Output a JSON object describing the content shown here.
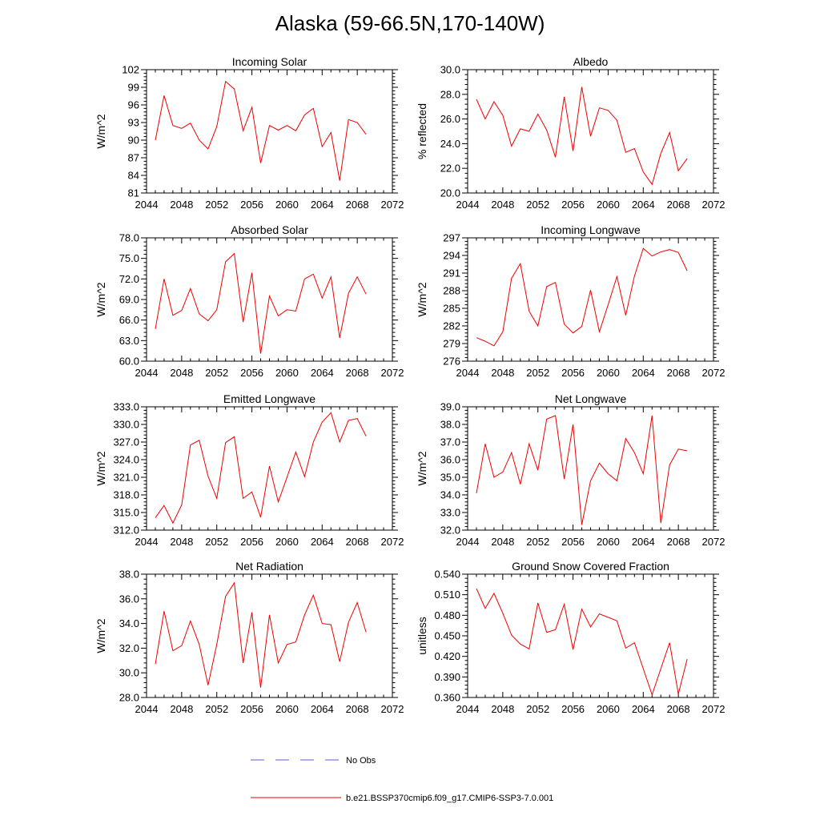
{
  "title": "Alaska (59-66.5N,170-140W)",
  "legend": [
    {
      "label": "No Obs",
      "color": "#5b5bd6",
      "style": "dashed"
    },
    {
      "label": "b.e21.BSSP370cmip6.f09_g17.CMIP6-SSP3-7.0.001",
      "color": "#ee0000",
      "style": "solid"
    }
  ],
  "chart_data": [
    {
      "type": "line",
      "title": "Incoming Solar",
      "ylabel": "W/m^2",
      "xlim": [
        2044,
        2072
      ],
      "ylim": [
        81,
        102
      ],
      "xticks": [
        2044,
        2048,
        2052,
        2056,
        2060,
        2064,
        2068,
        2072
      ],
      "yticks": [
        "81",
        "84",
        "87",
        "90",
        "93",
        "96",
        "99",
        "102"
      ],
      "color": "#ee0000",
      "x": [
        2045,
        2046,
        2047,
        2048,
        2049,
        2050,
        2051,
        2052,
        2053,
        2054,
        2055,
        2056,
        2057,
        2058,
        2059,
        2060,
        2061,
        2062,
        2063,
        2064,
        2065,
        2066,
        2067,
        2068,
        2069
      ],
      "values": [
        90.0,
        97.6,
        92.5,
        92.0,
        92.9,
        90.0,
        88.5,
        92.3,
        100.0,
        98.7,
        91.6,
        95.6,
        86.1,
        92.5,
        91.7,
        92.5,
        91.6,
        94.3,
        95.4,
        88.9,
        91.3,
        83.1,
        93.5,
        93.0,
        91.0
      ]
    },
    {
      "type": "line",
      "title": "Albedo",
      "ylabel": "% reflected",
      "xlim": [
        2044,
        2072
      ],
      "ylim": [
        20.0,
        30.0
      ],
      "xticks": [
        2044,
        2048,
        2052,
        2056,
        2060,
        2064,
        2068,
        2072
      ],
      "yticks": [
        "20.0",
        "22.0",
        "24.0",
        "26.0",
        "28.0",
        "30.0"
      ],
      "color": "#ee0000",
      "x": [
        2045,
        2046,
        2047,
        2048,
        2049,
        2050,
        2051,
        2052,
        2053,
        2054,
        2055,
        2056,
        2057,
        2058,
        2059,
        2060,
        2061,
        2062,
        2063,
        2064,
        2065,
        2066,
        2067,
        2068,
        2069
      ],
      "values": [
        27.6,
        26.0,
        27.4,
        26.3,
        23.8,
        25.2,
        25.0,
        26.4,
        25.1,
        22.9,
        27.8,
        23.4,
        28.6,
        24.6,
        26.9,
        26.7,
        25.9,
        23.3,
        23.6,
        21.7,
        20.7,
        23.2,
        24.9,
        21.8,
        22.8
      ]
    },
    {
      "type": "line",
      "title": "Absorbed Solar",
      "ylabel": "W/m^2",
      "xlim": [
        2044,
        2072
      ],
      "ylim": [
        60.0,
        78.0
      ],
      "xticks": [
        2044,
        2048,
        2052,
        2056,
        2060,
        2064,
        2068,
        2072
      ],
      "yticks": [
        "60.0",
        "63.0",
        "66.0",
        "69.0",
        "72.0",
        "75.0",
        "78.0"
      ],
      "color": "#ee0000",
      "x": [
        2045,
        2046,
        2047,
        2048,
        2049,
        2050,
        2051,
        2052,
        2053,
        2054,
        2055,
        2056,
        2057,
        2058,
        2059,
        2060,
        2061,
        2062,
        2063,
        2064,
        2065,
        2066,
        2067,
        2068,
        2069
      ],
      "values": [
        64.7,
        72.0,
        66.7,
        67.4,
        70.6,
        66.9,
        65.9,
        67.5,
        74.5,
        75.7,
        65.7,
        72.9,
        61.1,
        69.5,
        66.6,
        67.5,
        67.3,
        72.0,
        72.7,
        69.2,
        72.3,
        63.4,
        69.9,
        72.3,
        69.8
      ]
    },
    {
      "type": "line",
      "title": "Incoming Longwave",
      "ylabel": "W/m^2",
      "xlim": [
        2044,
        2072
      ],
      "ylim": [
        276,
        297
      ],
      "xticks": [
        2044,
        2048,
        2052,
        2056,
        2060,
        2064,
        2068,
        2072
      ],
      "yticks": [
        "276",
        "279",
        "282",
        "285",
        "288",
        "291",
        "294",
        "297"
      ],
      "color": "#ee0000",
      "x": [
        2045,
        2046,
        2047,
        2048,
        2049,
        2050,
        2051,
        2052,
        2053,
        2054,
        2055,
        2056,
        2057,
        2058,
        2059,
        2060,
        2061,
        2062,
        2063,
        2064,
        2065,
        2066,
        2067,
        2068,
        2069
      ],
      "values": [
        280.0,
        279.4,
        278.6,
        281.0,
        290.1,
        292.6,
        284.5,
        282.0,
        288.7,
        289.4,
        282.3,
        280.8,
        281.9,
        288.1,
        281.0,
        285.6,
        290.4,
        283.8,
        290.5,
        295.2,
        293.9,
        294.6,
        295.0,
        294.5,
        291.4
      ]
    },
    {
      "type": "line",
      "title": "Emitted Longwave",
      "ylabel": "W/m^2",
      "xlim": [
        2044,
        2072
      ],
      "ylim": [
        312.0,
        333.0
      ],
      "xticks": [
        2044,
        2048,
        2052,
        2056,
        2060,
        2064,
        2068,
        2072
      ],
      "yticks": [
        "312.0",
        "315.0",
        "318.0",
        "321.0",
        "324.0",
        "327.0",
        "330.0",
        "333.0"
      ],
      "color": "#ee0000",
      "x": [
        2045,
        2046,
        2047,
        2048,
        2049,
        2050,
        2051,
        2052,
        2053,
        2054,
        2055,
        2056,
        2057,
        2058,
        2059,
        2060,
        2061,
        2062,
        2063,
        2064,
        2065,
        2066,
        2067,
        2068,
        2069
      ],
      "values": [
        314.1,
        316.2,
        313.2,
        316.3,
        326.5,
        327.3,
        321.2,
        317.4,
        326.9,
        327.9,
        317.4,
        318.5,
        314.2,
        322.9,
        316.8,
        321.0,
        325.3,
        321.1,
        327.0,
        330.4,
        332.0,
        327.0,
        330.7,
        331.0,
        328.0
      ]
    },
    {
      "type": "line",
      "title": "Net Longwave",
      "ylabel": "W/m^2",
      "xlim": [
        2044,
        2072
      ],
      "ylim": [
        32.0,
        39.0
      ],
      "xticks": [
        2044,
        2048,
        2052,
        2056,
        2060,
        2064,
        2068,
        2072
      ],
      "yticks": [
        "32.0",
        "33.0",
        "34.0",
        "35.0",
        "36.0",
        "37.0",
        "38.0",
        "39.0"
      ],
      "color": "#ee0000",
      "x": [
        2045,
        2046,
        2047,
        2048,
        2049,
        2050,
        2051,
        2052,
        2053,
        2054,
        2055,
        2056,
        2057,
        2058,
        2059,
        2060,
        2061,
        2062,
        2063,
        2064,
        2065,
        2066,
        2067,
        2068,
        2069
      ],
      "values": [
        34.1,
        36.9,
        35.0,
        35.3,
        36.4,
        34.6,
        36.9,
        35.4,
        38.3,
        38.5,
        34.9,
        38.0,
        32.3,
        34.8,
        35.8,
        35.2,
        34.8,
        37.2,
        36.4,
        35.2,
        38.5,
        32.4,
        35.7,
        36.6,
        36.5
      ]
    },
    {
      "type": "line",
      "title": "Net Radiation",
      "ylabel": "W/m^2",
      "xlim": [
        2044,
        2072
      ],
      "ylim": [
        28.0,
        38.0
      ],
      "xticks": [
        2044,
        2048,
        2052,
        2056,
        2060,
        2064,
        2068,
        2072
      ],
      "yticks": [
        "28.0",
        "30.0",
        "32.0",
        "34.0",
        "36.0",
        "38.0"
      ],
      "color": "#ee0000",
      "x": [
        2045,
        2046,
        2047,
        2048,
        2049,
        2050,
        2051,
        2052,
        2053,
        2054,
        2055,
        2056,
        2057,
        2058,
        2059,
        2060,
        2061,
        2062,
        2063,
        2064,
        2065,
        2066,
        2067,
        2068,
        2069
      ],
      "values": [
        30.7,
        35.0,
        31.8,
        32.2,
        34.2,
        32.3,
        29.0,
        32.3,
        36.2,
        37.3,
        30.8,
        34.9,
        28.8,
        34.7,
        30.8,
        32.3,
        32.5,
        34.7,
        36.3,
        34.0,
        33.9,
        30.9,
        34.1,
        35.7,
        33.3
      ]
    },
    {
      "type": "line",
      "title": "Ground Snow Covered Fraction",
      "ylabel": "unitless",
      "xlim": [
        2044,
        2072
      ],
      "ylim": [
        0.36,
        0.54
      ],
      "xticks": [
        2044,
        2048,
        2052,
        2056,
        2060,
        2064,
        2068,
        2072
      ],
      "yticks": [
        "0.360",
        "0.390",
        "0.420",
        "0.450",
        "0.480",
        "0.510",
        "0.540"
      ],
      "color": "#ee0000",
      "x": [
        2045,
        2046,
        2047,
        2048,
        2049,
        2050,
        2051,
        2052,
        2053,
        2054,
        2055,
        2056,
        2057,
        2058,
        2059,
        2060,
        2061,
        2062,
        2063,
        2064,
        2065,
        2066,
        2067,
        2068,
        2069
      ],
      "values": [
        0.519,
        0.49,
        0.512,
        0.483,
        0.451,
        0.438,
        0.431,
        0.498,
        0.455,
        0.459,
        0.496,
        0.43,
        0.489,
        0.463,
        0.482,
        0.477,
        0.472,
        0.432,
        0.44,
        0.402,
        0.364,
        0.402,
        0.44,
        0.365,
        0.416
      ]
    }
  ]
}
